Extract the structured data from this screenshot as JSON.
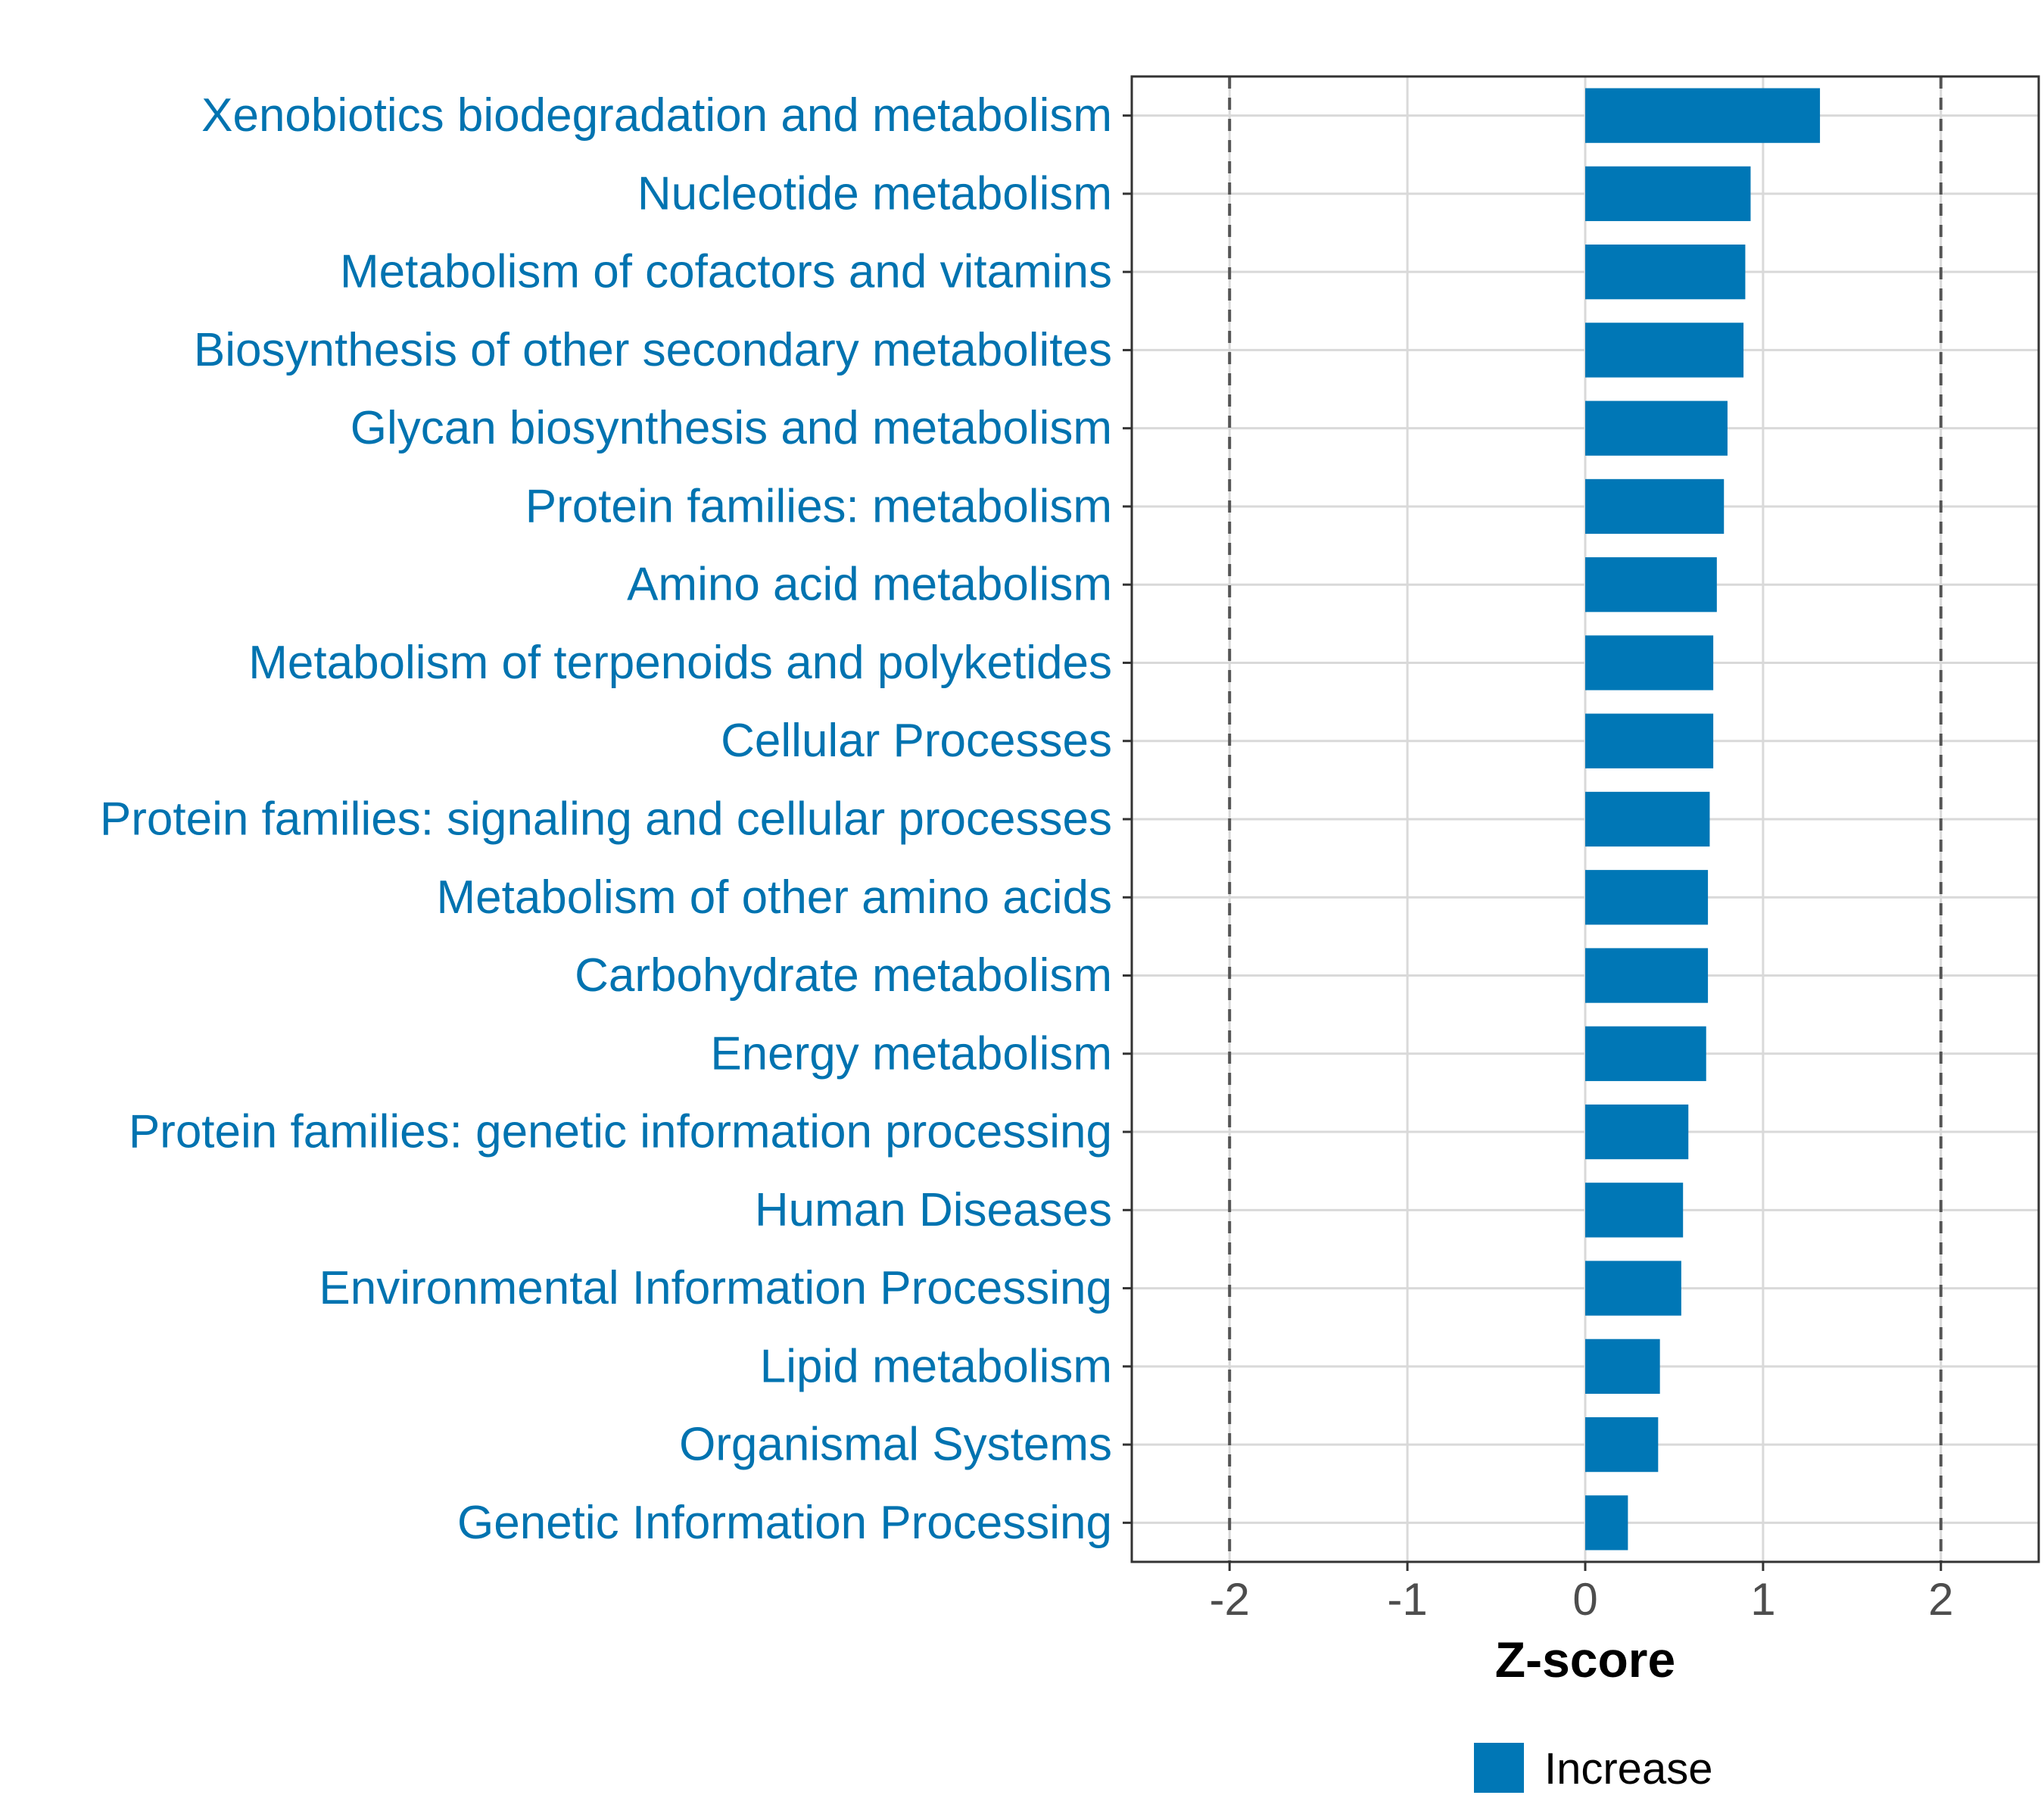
{
  "chart_data": {
    "type": "bar",
    "orientation": "horizontal",
    "categories": [
      "Xenobiotics biodegradation and metabolism",
      "Nucleotide metabolism",
      "Metabolism of cofactors and vitamins",
      "Biosynthesis of other secondary metabolites",
      "Glycan biosynthesis and metabolism",
      "Protein families: metabolism",
      "Amino acid metabolism",
      "Metabolism of terpenoids and polyketides",
      "Cellular Processes",
      "Protein families: signaling and cellular processes",
      "Metabolism of other amino acids",
      "Carbohydrate metabolism",
      "Energy metabolism",
      "Protein families: genetic information processing",
      "Human Diseases",
      "Environmental Information Processing",
      "Lipid metabolism",
      "Organismal Systems",
      "Genetic Information Processing"
    ],
    "series": [
      {
        "name": "Increase",
        "values": [
          1.32,
          0.93,
          0.9,
          0.89,
          0.8,
          0.78,
          0.74,
          0.72,
          0.72,
          0.7,
          0.69,
          0.69,
          0.68,
          0.58,
          0.55,
          0.54,
          0.42,
          0.41,
          0.24
        ]
      }
    ],
    "xlabel": "Z-score",
    "ylabel": "",
    "xlim": [
      -2.55,
      2.55
    ],
    "xticks": [
      -2,
      -1,
      0,
      1,
      2
    ],
    "xtick_labels": [
      "-2",
      "-1",
      "0",
      "1",
      "2"
    ],
    "reference_lines": [
      -2,
      2
    ],
    "grid": true,
    "legend": {
      "position": "bottom",
      "entries": [
        "Increase"
      ]
    },
    "colors": {
      "bar": "#0077b6",
      "label": "#0073b0",
      "grid": "#d9d9d9",
      "ref_line": "#555555",
      "frame": "#333333"
    }
  }
}
